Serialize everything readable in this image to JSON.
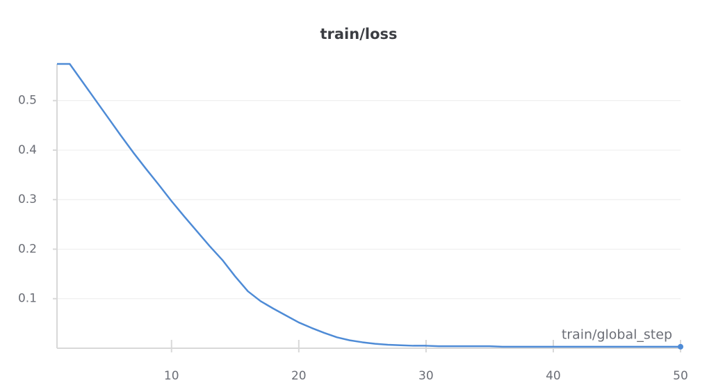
{
  "chart_data": {
    "type": "line",
    "title": "train/loss",
    "x_label": "train/global_step",
    "x": [
      1,
      2,
      3,
      4,
      5,
      6,
      7,
      8,
      9,
      10,
      11,
      12,
      13,
      14,
      15,
      16,
      17,
      18,
      19,
      20,
      21,
      22,
      23,
      24,
      25,
      26,
      27,
      28,
      29,
      30,
      31,
      32,
      33,
      34,
      35,
      36,
      37,
      38,
      39,
      40,
      41,
      42,
      43,
      44,
      45,
      46,
      47,
      48,
      49,
      50
    ],
    "series": [
      {
        "color": "#4e8bd6",
        "values": [
          0.574,
          0.574,
          0.538,
          0.502,
          0.466,
          0.43,
          0.395,
          0.362,
          0.33,
          0.297,
          0.266,
          0.236,
          0.206,
          0.178,
          0.145,
          0.115,
          0.095,
          0.08,
          0.066,
          0.052,
          0.041,
          0.031,
          0.022,
          0.016,
          0.012,
          0.009,
          0.007,
          0.006,
          0.005,
          0.005,
          0.004,
          0.004,
          0.004,
          0.004,
          0.004,
          0.003,
          0.003,
          0.003,
          0.003,
          0.003,
          0.003,
          0.003,
          0.003,
          0.003,
          0.003,
          0.003,
          0.003,
          0.003,
          0.003,
          0.003
        ]
      }
    ],
    "xlim": [
      1,
      50
    ],
    "ylim": [
      0,
      0.574
    ],
    "xticks": [
      10,
      20,
      30,
      40,
      50
    ],
    "yticks": [
      0.1,
      0.2,
      0.3,
      0.4,
      0.5
    ],
    "grid": true
  }
}
